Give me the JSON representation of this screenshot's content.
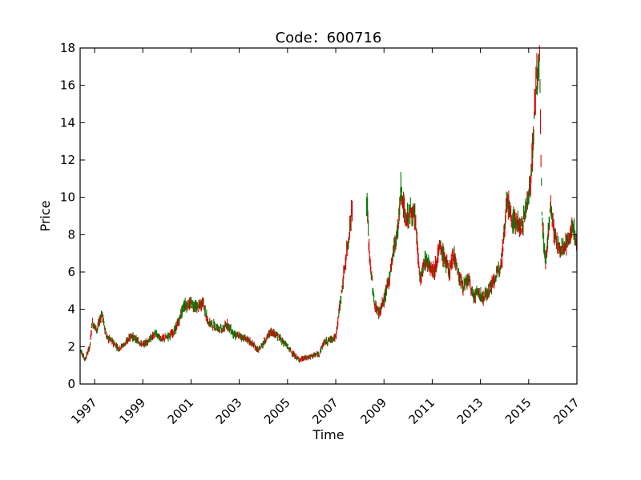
{
  "chart_data": {
    "type": "candlestick",
    "title": "Code：600716",
    "xlabel": "Time",
    "ylabel": "Price",
    "xlim": [
      1996.4,
      2017.0
    ],
    "ylim": [
      0,
      18
    ],
    "x_ticks": [
      "1997",
      "1999",
      "2001",
      "2003",
      "2005",
      "2007",
      "2009",
      "2011",
      "2013",
      "2015",
      "2017"
    ],
    "y_ticks": [
      "0",
      "2",
      "4",
      "6",
      "8",
      "10",
      "12",
      "14",
      "16",
      "18"
    ],
    "grid": false,
    "colors": {
      "up": "#dd0000",
      "down": "#007700"
    },
    "series": [
      {
        "values": [
          [
            1996.4,
            1.9
          ],
          [
            1996.6,
            1.3
          ],
          [
            1996.8,
            2.0
          ],
          [
            1996.9,
            3.3
          ],
          [
            1997.1,
            2.9
          ],
          [
            1997.3,
            3.8
          ],
          [
            1997.5,
            2.5
          ],
          [
            1997.8,
            2.2
          ],
          [
            1998.0,
            1.9
          ],
          [
            1998.3,
            2.2
          ],
          [
            1998.5,
            2.6
          ],
          [
            1998.8,
            2.3
          ],
          [
            1999.0,
            2.1
          ],
          [
            1999.3,
            2.4
          ],
          [
            1999.5,
            2.7
          ],
          [
            1999.8,
            2.4
          ],
          [
            2000.0,
            2.5
          ],
          [
            2000.3,
            2.8
          ],
          [
            2000.5,
            3.4
          ],
          [
            2000.7,
            4.2
          ],
          [
            2001.0,
            4.3
          ],
          [
            2001.3,
            4.1
          ],
          [
            2001.5,
            4.4
          ],
          [
            2001.7,
            3.3
          ],
          [
            2002.0,
            3.1
          ],
          [
            2002.3,
            2.9
          ],
          [
            2002.5,
            3.2
          ],
          [
            2002.8,
            2.6
          ],
          [
            2003.0,
            2.6
          ],
          [
            2003.3,
            2.4
          ],
          [
            2003.5,
            2.2
          ],
          [
            2003.8,
            1.8
          ],
          [
            2004.0,
            2.2
          ],
          [
            2004.3,
            2.8
          ],
          [
            2004.5,
            2.7
          ],
          [
            2004.8,
            2.3
          ],
          [
            2005.0,
            2.0
          ],
          [
            2005.3,
            1.5
          ],
          [
            2005.5,
            1.3
          ],
          [
            2005.8,
            1.4
          ],
          [
            2006.0,
            1.5
          ],
          [
            2006.3,
            1.6
          ],
          [
            2006.5,
            2.2
          ],
          [
            2006.8,
            2.4
          ],
          [
            2007.0,
            2.5
          ],
          [
            2007.2,
            4.5
          ],
          [
            2007.4,
            6.5
          ],
          [
            2007.6,
            8.5
          ],
          [
            2007.7,
            9.8
          ],
          [
            2008.3,
            9.5
          ],
          [
            2008.4,
            6.8
          ],
          [
            2008.6,
            4.3
          ],
          [
            2008.8,
            3.8
          ],
          [
            2009.0,
            4.5
          ],
          [
            2009.2,
            5.5
          ],
          [
            2009.4,
            7.2
          ],
          [
            2009.6,
            8.5
          ],
          [
            2009.7,
            10.5
          ],
          [
            2009.9,
            8.8
          ],
          [
            2010.1,
            9.2
          ],
          [
            2010.3,
            8.8
          ],
          [
            2010.5,
            5.5
          ],
          [
            2010.7,
            6.6
          ],
          [
            2010.9,
            6.4
          ],
          [
            2011.1,
            6.1
          ],
          [
            2011.3,
            7.3
          ],
          [
            2011.5,
            6.8
          ],
          [
            2011.7,
            6.0
          ],
          [
            2011.9,
            7.0
          ],
          [
            2012.1,
            5.8
          ],
          [
            2012.3,
            5.2
          ],
          [
            2012.5,
            5.6
          ],
          [
            2012.7,
            4.7
          ],
          [
            2012.9,
            4.9
          ],
          [
            2013.1,
            4.6
          ],
          [
            2013.3,
            4.9
          ],
          [
            2013.5,
            5.4
          ],
          [
            2013.7,
            5.9
          ],
          [
            2013.9,
            6.9
          ],
          [
            2014.1,
            10.0
          ],
          [
            2014.3,
            8.8
          ],
          [
            2014.5,
            8.7
          ],
          [
            2014.7,
            8.3
          ],
          [
            2014.9,
            9.5
          ],
          [
            2015.1,
            11.0
          ],
          [
            2015.3,
            16.0
          ],
          [
            2015.45,
            17.2
          ],
          [
            2015.55,
            9.0
          ],
          [
            2015.7,
            6.4
          ],
          [
            2015.9,
            9.5
          ],
          [
            2016.1,
            7.8
          ],
          [
            2016.3,
            7.1
          ],
          [
            2016.5,
            7.5
          ],
          [
            2016.7,
            7.8
          ],
          [
            2016.85,
            8.6
          ],
          [
            2017.0,
            7.3
          ]
        ]
      }
    ]
  }
}
